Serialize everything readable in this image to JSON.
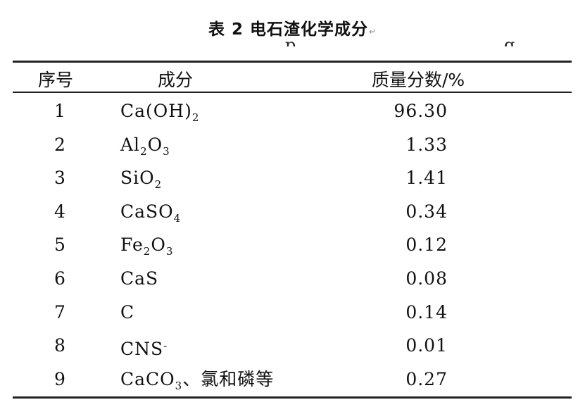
{
  "table": {
    "caption": "表 2 电石渣化学成分",
    "caption_mark": "↵",
    "partial_text_left": "p",
    "partial_text_right": "g",
    "headers": {
      "index": "序号",
      "component": "成分",
      "mass_fraction": "质量分数/%"
    },
    "rows": [
      {
        "index": "1",
        "parts": [
          {
            "t": "Ca(OH)"
          },
          {
            "t": "2",
            "sub": true
          }
        ],
        "value": "96.30"
      },
      {
        "index": "2",
        "parts": [
          {
            "t": "Al"
          },
          {
            "t": "2",
            "sub": true
          },
          {
            "t": "O"
          },
          {
            "t": "3",
            "sub": true
          }
        ],
        "value": "1.33"
      },
      {
        "index": "3",
        "parts": [
          {
            "t": "SiO"
          },
          {
            "t": "2",
            "sub": true
          }
        ],
        "value": "1.41"
      },
      {
        "index": "4",
        "parts": [
          {
            "t": "CaSO"
          },
          {
            "t": "4",
            "sub": true
          }
        ],
        "value": "0.34"
      },
      {
        "index": "5",
        "parts": [
          {
            "t": "Fe"
          },
          {
            "t": "2",
            "sub": true
          },
          {
            "t": "O"
          },
          {
            "t": "3",
            "sub": true
          }
        ],
        "value": "0.12"
      },
      {
        "index": "6",
        "parts": [
          {
            "t": "CaS"
          }
        ],
        "value": "0.08"
      },
      {
        "index": "7",
        "parts": [
          {
            "t": "C"
          }
        ],
        "value": "0.14"
      },
      {
        "index": "8",
        "parts": [
          {
            "t": "CNS"
          },
          {
            "t": "-",
            "sup": true
          }
        ],
        "value": "0.01"
      },
      {
        "index": "9",
        "parts": [
          {
            "t": "CaCO"
          },
          {
            "t": "3",
            "sub": true
          },
          {
            "t": "、氯和磷等"
          }
        ],
        "value": "0.27"
      }
    ]
  }
}
